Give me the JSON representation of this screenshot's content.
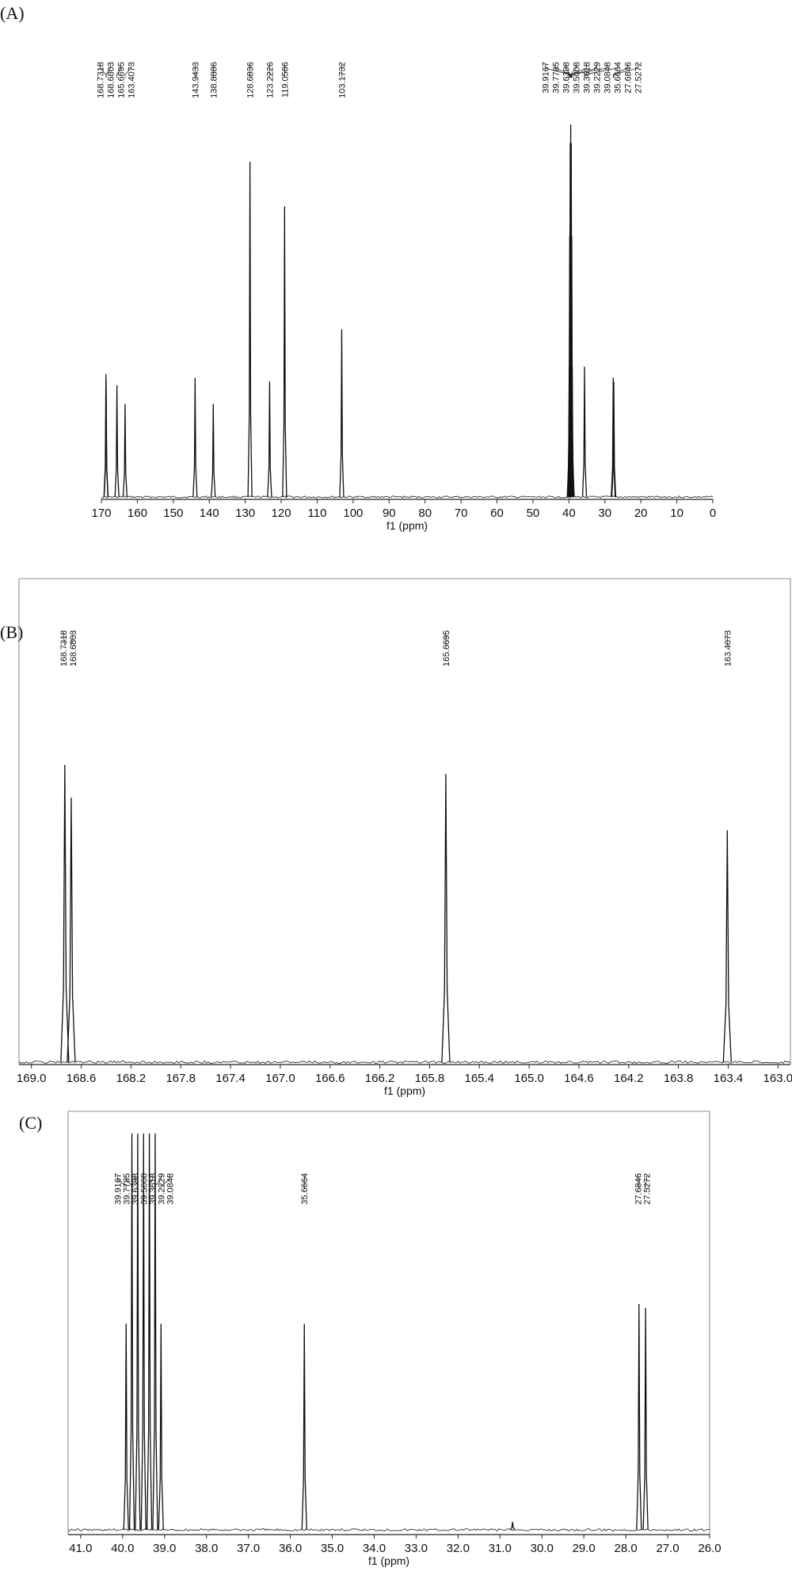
{
  "panels": [
    {
      "tag": "(A)",
      "chart_data": {
        "type": "line",
        "title": "",
        "xlabel": "f1 (ppm)",
        "ylabel": "",
        "x_direction": "descending",
        "xlim": [
          170,
          0
        ],
        "x_ticks": [
          170,
          160,
          150,
          140,
          130,
          120,
          110,
          100,
          90,
          80,
          70,
          60,
          50,
          40,
          30,
          20,
          10,
          0
        ],
        "tick_labels": [
          "170",
          "160",
          "150",
          "140",
          "130",
          "120",
          "110",
          "100",
          "90",
          "80",
          "70",
          "60",
          "50",
          "40",
          "30",
          "20",
          "10",
          "0"
        ],
        "grid": false,
        "peaks": [
          {
            "x": 168.7318,
            "y": 0.33
          },
          {
            "x": 168.6803,
            "y": 0.31
          },
          {
            "x": 165.6695,
            "y": 0.3
          },
          {
            "x": 163.4073,
            "y": 0.25
          },
          {
            "x": 143.9433,
            "y": 0.32
          },
          {
            "x": 138.8886,
            "y": 0.25
          },
          {
            "x": 128.6836,
            "y": 0.9
          },
          {
            "x": 123.2226,
            "y": 0.31
          },
          {
            "x": 119.0586,
            "y": 0.78
          },
          {
            "x": 103.1732,
            "y": 0.45
          },
          {
            "x": 39.9167,
            "y": 0.35
          },
          {
            "x": 39.7785,
            "y": 0.7
          },
          {
            "x": 39.6398,
            "y": 0.95
          },
          {
            "x": 39.5008,
            "y": 1.0
          },
          {
            "x": 39.3618,
            "y": 0.95
          },
          {
            "x": 39.2229,
            "y": 0.7
          },
          {
            "x": 39.0848,
            "y": 0.35
          },
          {
            "x": 35.6664,
            "y": 0.35
          },
          {
            "x": 27.6846,
            "y": 0.32
          },
          {
            "x": 27.5272,
            "y": 0.31
          }
        ],
        "peak_labels": [
          {
            "x": 168.7318,
            "label": "168.7318"
          },
          {
            "x": 168.6803,
            "label": "168.6803"
          },
          {
            "x": 165.6695,
            "label": "165.6695"
          },
          {
            "x": 163.4073,
            "label": "163.4073"
          },
          {
            "x": 143.9433,
            "label": "143.9433"
          },
          {
            "x": 138.8886,
            "label": "138.8886"
          },
          {
            "x": 128.6836,
            "label": "128.6836"
          },
          {
            "x": 123.2226,
            "label": "123.2226"
          },
          {
            "x": 119.0586,
            "label": "119.0586"
          },
          {
            "x": 103.1732,
            "label": "103.1732"
          },
          {
            "x": 39.9167,
            "label": "39.9167"
          },
          {
            "x": 39.7785,
            "label": "39.7785"
          },
          {
            "x": 39.6398,
            "label": "39.6398"
          },
          {
            "x": 39.5008,
            "label": "39.5008"
          },
          {
            "x": 39.3618,
            "label": "39.3618"
          },
          {
            "x": 39.2229,
            "label": "39.2229"
          },
          {
            "x": 39.0848,
            "label": "39.0848"
          },
          {
            "x": 35.6664,
            "label": "35.6664"
          },
          {
            "x": 27.6846,
            "label": "27.6846"
          },
          {
            "x": 27.5272,
            "label": "27.5272"
          }
        ]
      }
    },
    {
      "tag": "(B)",
      "chart_data": {
        "type": "line",
        "title": "",
        "xlabel": "f1 (ppm)",
        "ylabel": "",
        "x_direction": "descending",
        "xlim": [
          169.1,
          162.9
        ],
        "x_ticks": [
          169.0,
          168.6,
          168.2,
          167.8,
          167.4,
          167.0,
          166.6,
          166.2,
          165.8,
          165.4,
          165.0,
          164.6,
          164.2,
          163.8,
          163.4,
          163.0
        ],
        "tick_labels": [
          "169.0",
          "168.6",
          "168.2",
          "167.8",
          "167.4",
          "167.0",
          "166.6",
          "166.2",
          "165.8",
          "165.4",
          "165.0",
          "164.6",
          "164.2",
          "163.8",
          "163.4",
          "163.0"
        ],
        "grid": false,
        "peaks": [
          {
            "x": 168.7318,
            "y": 1.0
          },
          {
            "x": 168.6803,
            "y": 0.89
          },
          {
            "x": 165.6695,
            "y": 0.97
          },
          {
            "x": 163.4073,
            "y": 0.78
          }
        ],
        "peak_labels": [
          {
            "x": 168.7318,
            "label": "168.7318"
          },
          {
            "x": 168.6803,
            "label": "168.6803"
          },
          {
            "x": 165.6695,
            "label": "165.6695"
          },
          {
            "x": 163.4073,
            "label": "163.4073"
          }
        ]
      }
    },
    {
      "tag": "(C)",
      "chart_data": {
        "type": "line",
        "title": "",
        "xlabel": "f1 (ppm)",
        "ylabel": "",
        "x_direction": "descending",
        "xlim": [
          41.3,
          26.0
        ],
        "x_ticks": [
          41.0,
          40.0,
          39.0,
          38.0,
          37.0,
          36.0,
          35.0,
          34.0,
          33.0,
          32.0,
          31.0,
          30.0,
          29.0,
          28.0,
          27.0,
          26.0
        ],
        "tick_labels": [
          "41.0",
          "40.0",
          "39.0",
          "38.0",
          "37.0",
          "36.0",
          "35.0",
          "34.0",
          "33.0",
          "32.0",
          "31.0",
          "30.0",
          "29.0",
          "28.0",
          "27.0",
          "26.0"
        ],
        "grid": false,
        "peaks": [
          {
            "x": 39.9167,
            "y": 0.52
          },
          {
            "x": 39.7785,
            "y": 1.0
          },
          {
            "x": 39.6398,
            "y": 1.0
          },
          {
            "x": 39.5008,
            "y": 1.0
          },
          {
            "x": 39.3618,
            "y": 1.0
          },
          {
            "x": 39.2229,
            "y": 1.0
          },
          {
            "x": 39.0848,
            "y": 0.52
          },
          {
            "x": 35.6664,
            "y": 0.52
          },
          {
            "x": 30.7,
            "y": 0.02
          },
          {
            "x": 27.6846,
            "y": 0.57
          },
          {
            "x": 27.5272,
            "y": 0.56
          }
        ],
        "peak_labels": [
          {
            "x": 39.9167,
            "label": "39.9167"
          },
          {
            "x": 39.7785,
            "label": "39.7785"
          },
          {
            "x": 39.6398,
            "label": "39.6398"
          },
          {
            "x": 39.5008,
            "label": "39.5008"
          },
          {
            "x": 39.3618,
            "label": "39.3618"
          },
          {
            "x": 39.2229,
            "label": "39.2229"
          },
          {
            "x": 39.0848,
            "label": "39.0848"
          },
          {
            "x": 35.6664,
            "label": "35.6664"
          },
          {
            "x": 27.6846,
            "label": "27.6846"
          },
          {
            "x": 27.5272,
            "label": "27.5272"
          }
        ]
      }
    }
  ]
}
